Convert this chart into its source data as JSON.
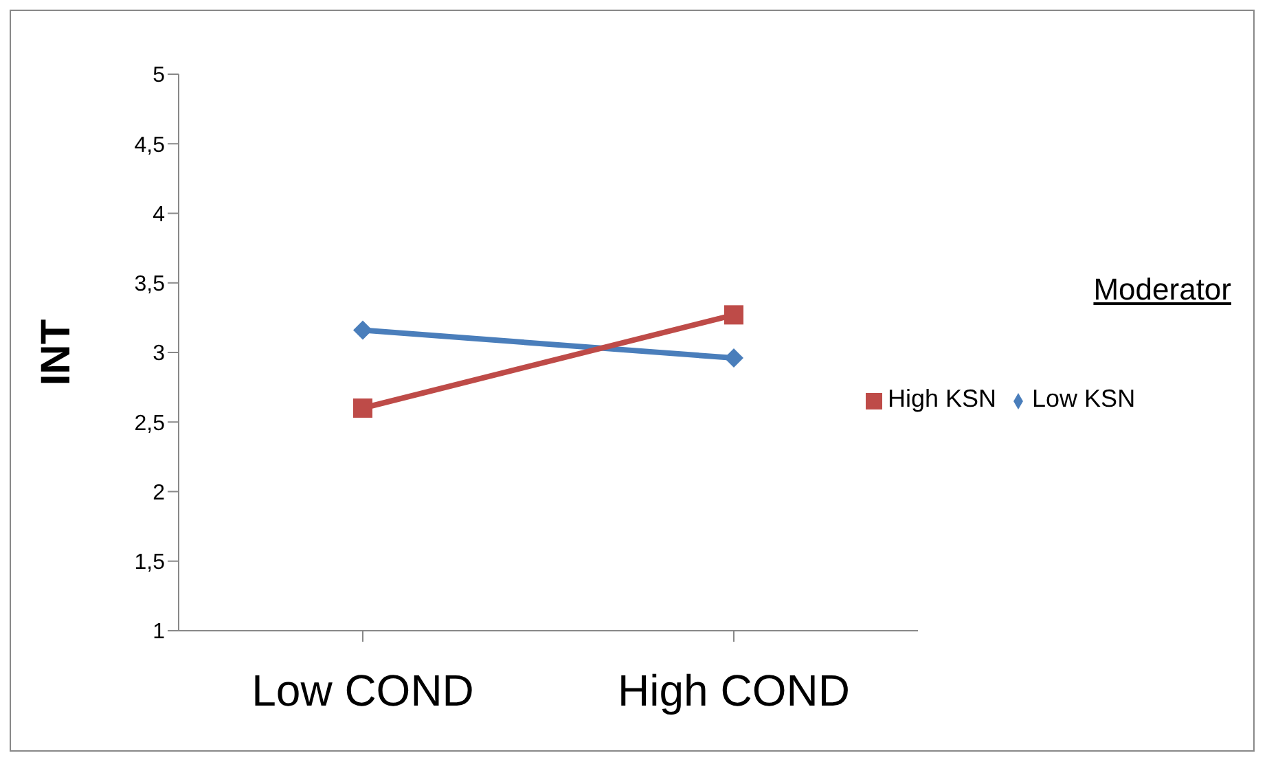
{
  "chart_data": {
    "type": "line",
    "ylabel": "INT",
    "legend_title": "Moderator",
    "legend": "right",
    "categories": [
      "Low COND",
      "High COND"
    ],
    "series": [
      {
        "name": "Low KSN",
        "color": "#4a7ebb",
        "values": [
          3.16,
          2.96
        ],
        "marker": "diamond"
      },
      {
        "name": "High KSN",
        "color": "#be4b48",
        "values": [
          2.6,
          3.27
        ],
        "marker": "square"
      }
    ],
    "ylim": [
      1,
      5
    ],
    "yticks": [
      1,
      {
        "value": 1.5,
        "label": "1,5"
      },
      2,
      {
        "value": 2.5,
        "label": "2,5"
      },
      3,
      {
        "value": 3.5,
        "label": "3,5"
      },
      4,
      {
        "value": 4.5,
        "label": "4,5"
      },
      5
    ],
    "grid": false
  }
}
